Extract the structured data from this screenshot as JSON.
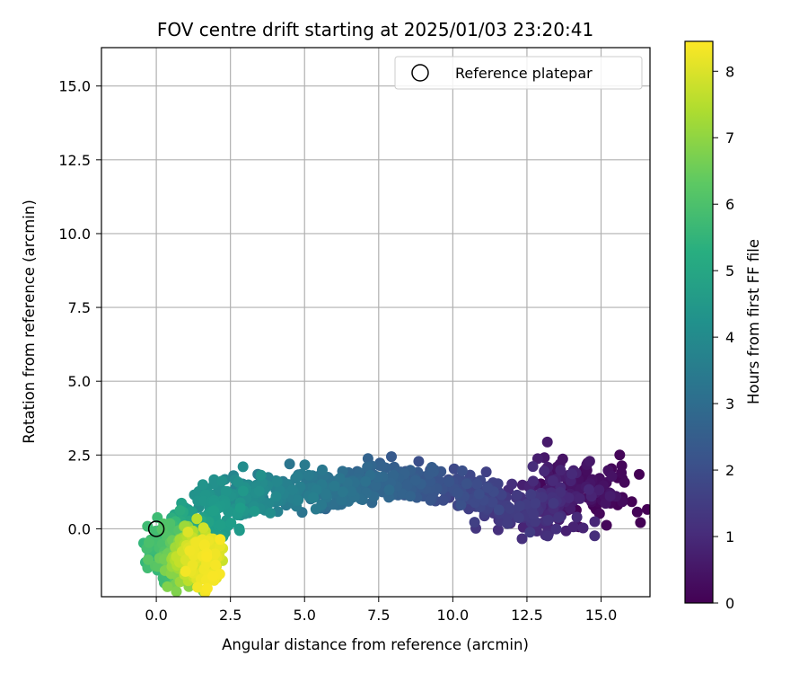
{
  "chart_data": {
    "type": "scatter",
    "title": "FOV centre drift starting at 2025/01/03 23:20:41",
    "xlabel": "Angular distance from reference (arcmin)",
    "ylabel": "Rotation from reference (arcmin)",
    "xlim": [
      -1.85,
      16.65
    ],
    "ylim": [
      -2.3,
      16.3
    ],
    "x_ticks": [
      0.0,
      2.5,
      5.0,
      7.5,
      10.0,
      12.5,
      15.0
    ],
    "x_tick_labels": [
      "0.0",
      "2.5",
      "5.0",
      "7.5",
      "10.0",
      "12.5",
      "15.0"
    ],
    "y_ticks": [
      0.0,
      2.5,
      5.0,
      7.5,
      10.0,
      12.5,
      15.0
    ],
    "y_tick_labels": [
      "0.0",
      "2.5",
      "5.0",
      "7.5",
      "10.0",
      "12.5",
      "15.0"
    ],
    "grid": true,
    "colormap": "viridis",
    "colorbar": {
      "label": "Hours from first FF file",
      "range": [
        0,
        8.45
      ],
      "ticks": [
        0,
        1,
        2,
        3,
        4,
        5,
        6,
        7,
        8
      ],
      "tick_labels": [
        "0",
        "1",
        "2",
        "3",
        "4",
        "5",
        "6",
        "7",
        "8"
      ]
    },
    "legend": {
      "position": "top-right",
      "entries": [
        {
          "label": "Reference platepar",
          "marker": "open-circle"
        }
      ]
    },
    "reference_point": {
      "x": 0.0,
      "y": 0.0
    },
    "trend": {
      "description_points": [
        {
          "t": 0.0,
          "x": 15.4,
          "y": 1.1
        },
        {
          "t": 0.3,
          "x": 14.2,
          "y": 1.5
        },
        {
          "t": 0.6,
          "x": 13.8,
          "y": 1.3
        },
        {
          "t": 0.9,
          "x": 13.4,
          "y": 0.7
        },
        {
          "t": 1.2,
          "x": 12.6,
          "y": 0.6
        },
        {
          "t": 1.5,
          "x": 11.6,
          "y": 0.7
        },
        {
          "t": 1.8,
          "x": 10.6,
          "y": 1.2
        },
        {
          "t": 2.1,
          "x": 9.6,
          "y": 1.6
        },
        {
          "t": 2.4,
          "x": 8.5,
          "y": 1.6
        },
        {
          "t": 2.7,
          "x": 7.4,
          "y": 1.6
        },
        {
          "t": 3.0,
          "x": 6.4,
          "y": 1.3
        },
        {
          "t": 3.3,
          "x": 5.4,
          "y": 1.3
        },
        {
          "t": 3.6,
          "x": 4.4,
          "y": 1.3
        },
        {
          "t": 3.9,
          "x": 3.4,
          "y": 1.2
        },
        {
          "t": 4.2,
          "x": 2.6,
          "y": 1.1
        },
        {
          "t": 4.5,
          "x": 2.0,
          "y": 0.5
        },
        {
          "t": 4.8,
          "x": 1.5,
          "y": 0.0
        },
        {
          "t": 5.1,
          "x": 0.9,
          "y": -0.5
        },
        {
          "t": 5.4,
          "x": 0.4,
          "y": -0.6
        },
        {
          "t": 5.7,
          "x": 0.2,
          "y": -0.6
        },
        {
          "t": 6.0,
          "x": 0.4,
          "y": -0.8
        },
        {
          "t": 6.3,
          "x": 0.7,
          "y": -1.0
        },
        {
          "t": 6.6,
          "x": 0.9,
          "y": -1.1
        },
        {
          "t": 6.9,
          "x": 1.0,
          "y": -1.0
        },
        {
          "t": 7.2,
          "x": 1.1,
          "y": -0.9
        },
        {
          "t": 7.5,
          "x": 1.2,
          "y": -0.8
        },
        {
          "t": 7.8,
          "x": 1.4,
          "y": -0.9
        },
        {
          "t": 8.1,
          "x": 1.6,
          "y": -1.0
        },
        {
          "t": 8.4,
          "x": 1.7,
          "y": -1.0
        }
      ],
      "n_points": 1400,
      "scatter_x": 0.55,
      "scatter_y": 0.32
    }
  }
}
